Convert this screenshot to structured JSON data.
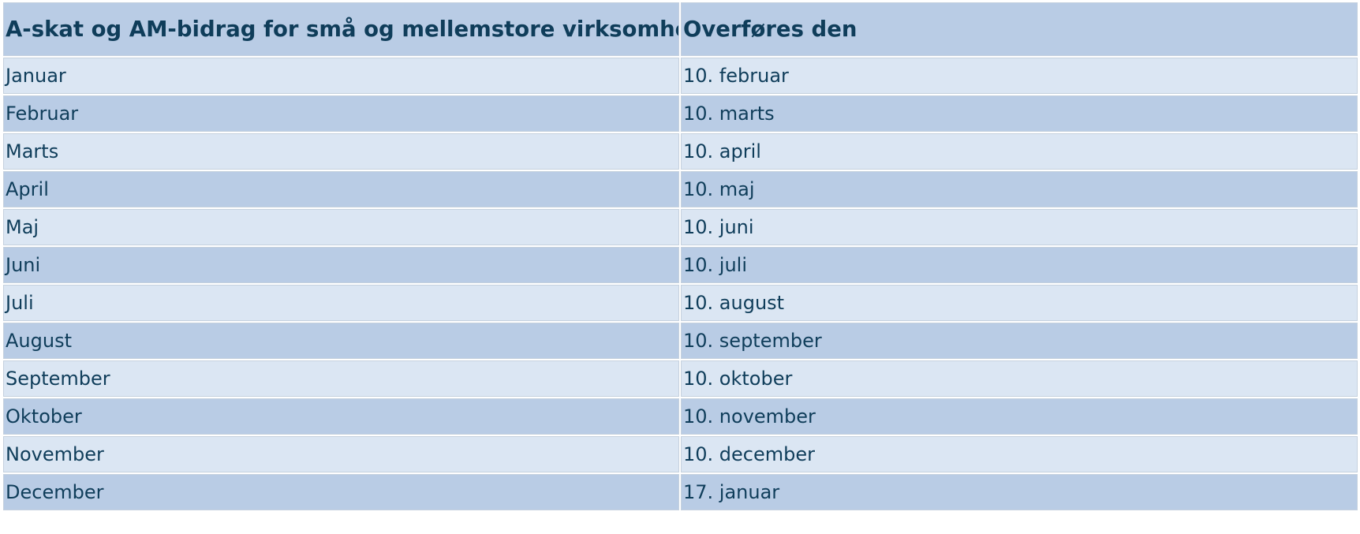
{
  "table": {
    "headers": [
      "A-skat og AM-bidrag for små og mellemstore virksomheder",
      "Overføres den"
    ],
    "rows": [
      {
        "month": "Januar",
        "due": "10. februar"
      },
      {
        "month": "Februar",
        "due": "10. marts"
      },
      {
        "month": "Marts",
        "due": "10. april"
      },
      {
        "month": "April",
        "due": "10. maj"
      },
      {
        "month": "Maj",
        "due": "10. juni"
      },
      {
        "month": "Juni",
        "due": "10. juli"
      },
      {
        "month": "Juli",
        "due": "10. august"
      },
      {
        "month": "August",
        "due": "10. september"
      },
      {
        "month": "September",
        "due": "10. oktober"
      },
      {
        "month": "Oktober",
        "due": "10. november"
      },
      {
        "month": "November",
        "due": "10. december"
      },
      {
        "month": "December",
        "due": "17. januar"
      }
    ]
  },
  "colors": {
    "header_bg": "#b9cce5",
    "row_light_bg": "#dbe6f3",
    "row_dark_bg": "#b9cce5",
    "text": "#0f3d5a",
    "border": "#c5d1de"
  }
}
